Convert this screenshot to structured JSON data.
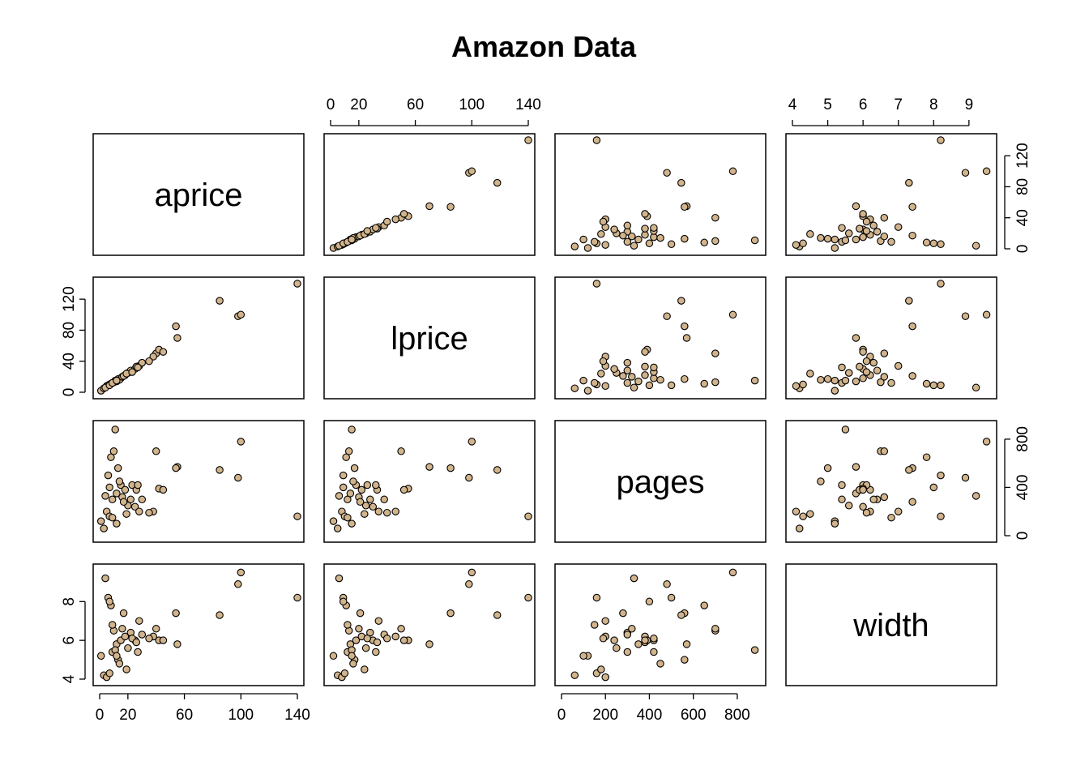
{
  "chart_data": {
    "type": "scatter",
    "title": "Amazon Data",
    "variables": [
      "aprice",
      "lprice",
      "pages",
      "width"
    ],
    "axes": {
      "aprice": {
        "range": [
          0,
          140
        ],
        "ticks_bottom": [
          "0",
          "20",
          "60",
          "100",
          "140"
        ],
        "ticks_left": []
      },
      "lprice": {
        "range": [
          0,
          140
        ],
        "ticks_top": [
          "0",
          "20",
          "60",
          "100",
          "140"
        ],
        "ticks_left": [
          "0",
          "40",
          "80",
          "120"
        ]
      },
      "pages": {
        "range": [
          0,
          900
        ],
        "ticks_bottom": [
          "0",
          "200",
          "400",
          "600",
          "800"
        ],
        "ticks_right": [
          "0",
          "400",
          "800"
        ]
      },
      "width": {
        "range": [
          4,
          9.6
        ],
        "ticks_top": [
          "4",
          "5",
          "6",
          "7",
          "8",
          "9"
        ],
        "ticks_left": [
          "4",
          "6",
          "8"
        ],
        "ticks_right": [
          "0",
          "40",
          "80",
          "120"
        ]
      }
    },
    "point_color": "#D2B48C",
    "point_edge_color": "#000000",
    "grid": false,
    "observations": {
      "fields": [
        "aprice",
        "lprice",
        "pages",
        "width"
      ],
      "rows": [
        [
          1,
          2,
          120,
          5.2
        ],
        [
          3,
          5,
          60,
          4.2
        ],
        [
          5,
          8,
          200,
          4.1
        ],
        [
          7,
          10,
          160,
          4.3
        ],
        [
          9,
          12,
          300,
          5.4
        ],
        [
          12,
          14,
          350,
          5.8
        ],
        [
          15,
          18,
          420,
          6.0
        ],
        [
          18,
          22,
          380,
          6.2
        ],
        [
          20,
          25,
          250,
          5.6
        ],
        [
          22,
          28,
          300,
          6.4
        ],
        [
          25,
          30,
          240,
          6.0
        ],
        [
          28,
          34,
          200,
          7.0
        ],
        [
          6,
          9,
          500,
          8.2
        ],
        [
          8,
          11,
          650,
          7.8
        ],
        [
          10,
          13,
          700,
          6.5
        ],
        [
          11,
          15,
          880,
          5.5
        ],
        [
          13,
          17,
          560,
          5.0
        ],
        [
          14,
          16,
          450,
          4.8
        ],
        [
          16,
          20,
          320,
          6.6
        ],
        [
          17,
          21,
          280,
          7.4
        ],
        [
          4,
          6,
          330,
          9.2
        ],
        [
          7,
          9,
          400,
          8.0
        ],
        [
          9,
          12,
          150,
          6.8
        ],
        [
          12,
          15,
          100,
          5.2
        ],
        [
          19,
          24,
          180,
          4.5
        ],
        [
          23,
          26,
          420,
          6.1
        ],
        [
          26,
          33,
          380,
          5.9
        ],
        [
          30,
          38,
          300,
          6.3
        ],
        [
          40,
          50,
          700,
          6.6
        ],
        [
          42,
          55,
          390,
          6.0
        ],
        [
          55,
          70,
          570,
          5.8
        ],
        [
          54,
          85,
          560,
          7.4
        ],
        [
          85,
          118,
          545,
          7.3
        ],
        [
          98,
          98,
          480,
          8.9
        ],
        [
          100,
          100,
          780,
          9.5
        ],
        [
          140,
          140,
          160,
          8.2
        ],
        [
          38,
          46,
          200,
          6.2
        ],
        [
          45,
          52,
          380,
          6.0
        ],
        [
          35,
          40,
          190,
          6.1
        ],
        [
          27,
          32,
          420,
          5.4
        ]
      ]
    }
  }
}
